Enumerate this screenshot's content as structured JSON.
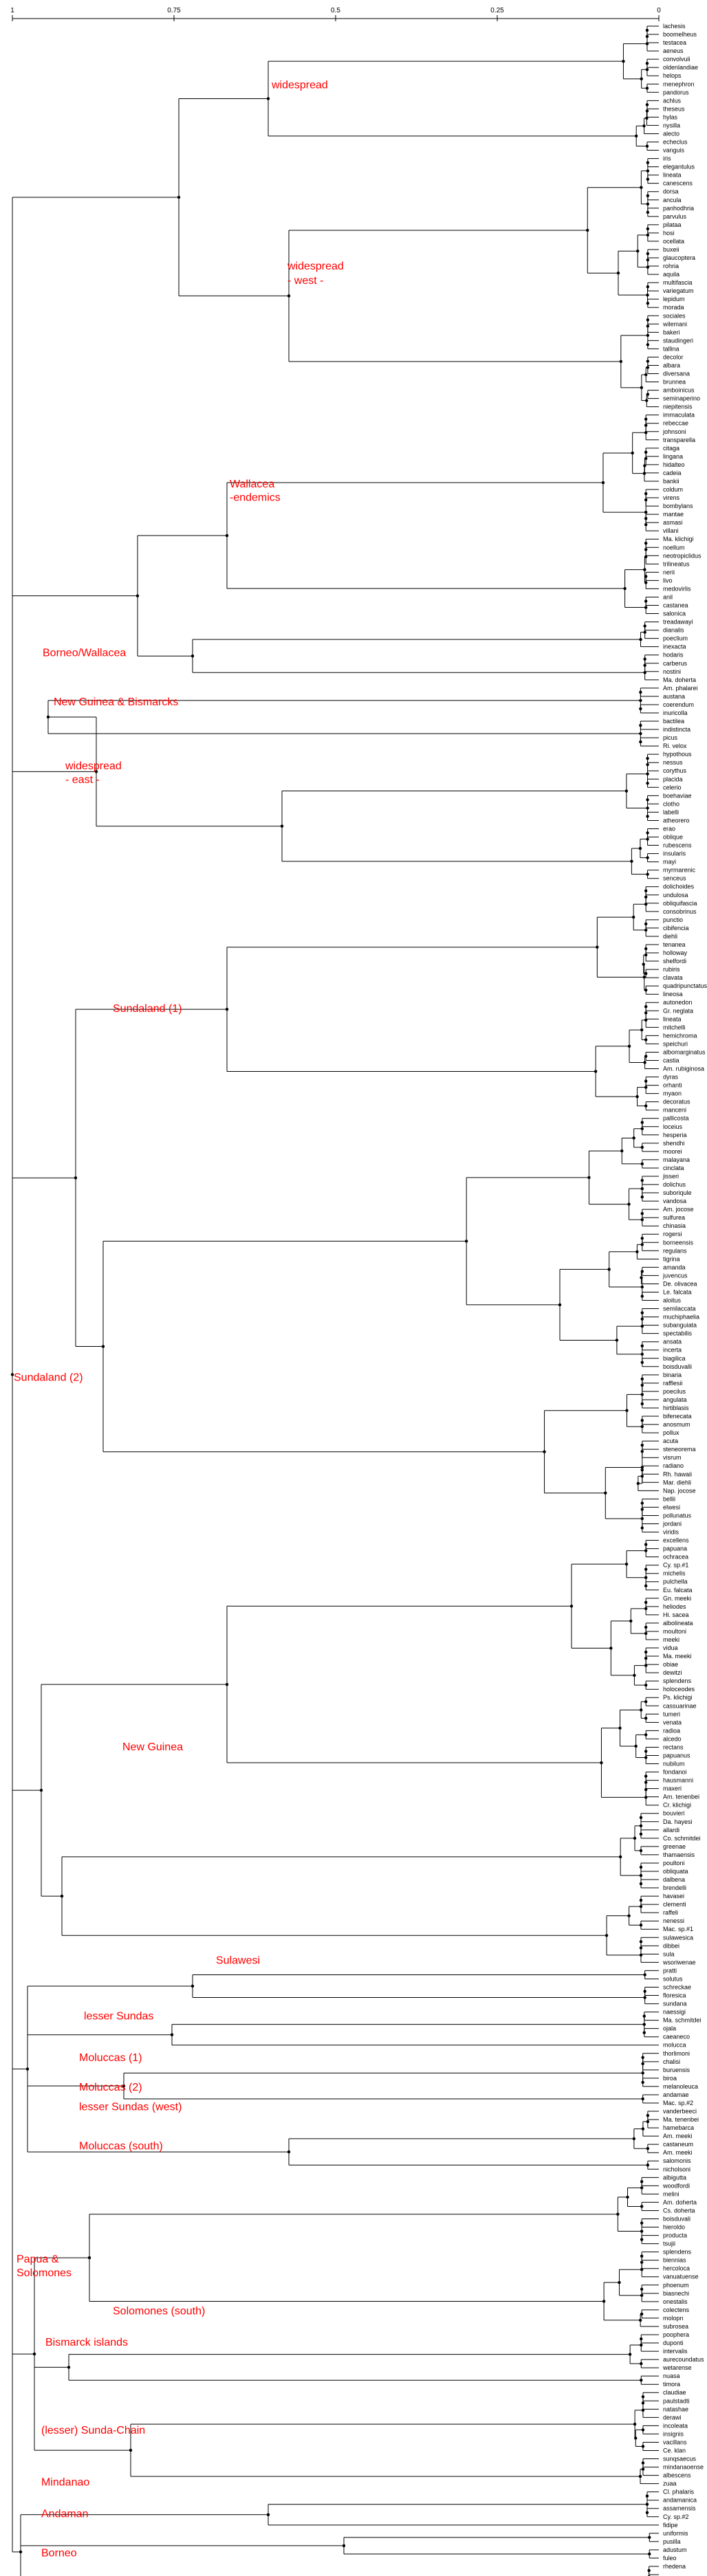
{
  "scale_labels": [
    "1",
    "0.75",
    "0.5",
    "0.25",
    "0"
  ],
  "leaves": [
    "lachesis",
    "boomelheus",
    "testacea",
    "aeneus",
    "convolvuli",
    "oldenlandiae",
    "helops",
    "menephron",
    "pandorus",
    "achlus",
    "theseus",
    "hylas",
    "nysilla",
    "alecto",
    "echeclus",
    "vanguis",
    "iris",
    "elegantulus",
    "lineata",
    "canescens",
    "dorsa",
    "ancula",
    "panhodhria",
    "parvulus",
    "pilataa",
    "hosi",
    "ocellata",
    "buxeii",
    "glaucoptera",
    "rohria",
    "aquila",
    "multifascia",
    "variegatum",
    "lepidum",
    "morada",
    "sociales",
    "wilemani",
    "bakeri",
    "staudingeri",
    "tallina",
    "decolor",
    "albara",
    "diversana",
    "brunnea",
    "amboinicus",
    "seminaperino",
    "niepitensis",
    "immaculata",
    "rebeccae",
    "johnsoni",
    "transparella",
    "citaga",
    "lingana",
    "hidalteo",
    "cadeia",
    "bankii",
    "coldum",
    "virens",
    "bombylans",
    "mantae",
    "asmasi",
    "villani",
    "Ma. klichigi",
    "noellum",
    "neotropiclidus",
    "trilineatus",
    "nerii",
    "livo",
    "medovirlis",
    "anil",
    "castanea",
    "salonica",
    "treadawayi",
    "dianalis",
    "poeclium",
    "inexacta",
    "hodaris",
    "carberus",
    "nostini",
    "Ma. doherta",
    "Am. phalarei",
    "austana",
    "coerendum",
    "inuricolla",
    "bactilea",
    "indistincta",
    "picus",
    "Ri. velox",
    "hypothous",
    "nessus",
    "corythus",
    "placida",
    "celerio",
    "boehaviae",
    "clotho",
    "labelli",
    "atheorero",
    "erao",
    "oblique",
    "rubescens",
    "insularis",
    "mayi",
    "myrmarenic",
    "senceus",
    "dolichoides",
    "undulosa",
    "obliquifascia",
    "consobrinus",
    "punctio",
    "cibifencia",
    "diehli",
    "tenanea",
    "holloway",
    "shelfordi",
    "rubiris",
    "clavata",
    "quadripunctatus",
    "lineosa",
    "autonedon",
    "Gr. neglata",
    "lineata",
    "mitchelli",
    "hemichroma",
    "speichuri",
    "albomarginatus",
    "castia",
    "Am. rubiginosa",
    "dyras",
    "orhanti",
    "myaon",
    "decoratus",
    "manceni",
    "pallicosta",
    "loceius",
    "hesperia",
    "shendhi",
    "moorei",
    "malayana",
    "cinclata",
    "jisseri",
    "dolichus",
    "suboriqule",
    "vandosa",
    "Am. jocose",
    "sulfurea",
    "chinasia",
    "rogersi",
    "borneensis",
    "regulans",
    "tigrina",
    "amanda",
    "juvencus",
    "De. olivacea",
    "Le. falcata",
    "aloitus",
    "semilaccata",
    "muchiphaelia",
    "subanguiata",
    "spectabilis",
    "ansata",
    "incerta",
    "biagilica",
    "boisduvalli",
    "binaria",
    "rafflesii",
    "poecilus",
    "angulata",
    "hirtiblasis",
    "bifenecata",
    "anosmum",
    "pollux",
    "acuta",
    "steneorema",
    "visrum",
    "radiano",
    "Rh. hawaii",
    "Mar. diehli",
    "Nap. jocose",
    "bellii",
    "elwesi",
    "pollunatus",
    "jordani",
    "viridis",
    "excellens",
    "papuana",
    "ochracea",
    "Cy. sp.#1",
    "michelis",
    "pulchella",
    "Eu. falcata",
    "Gn. meeki",
    "heliodes",
    "Hi. sacea",
    "albolineata",
    "moultoni",
    "meeki",
    "vidua",
    "Ma. meeki",
    "obiae",
    "dewitzi",
    "splendens",
    "holoceodes",
    "Ps. klichigi",
    "cassuarinae",
    "tumeri",
    "venata",
    "radioa",
    "alcedo",
    "rectans",
    "papuanus",
    "nubilum",
    "fondanoi",
    "hausmanni",
    "maxeri",
    "Am. tenenbei",
    "Cr. klichigi",
    "bouvieri",
    "Da. hayesi",
    "allardi",
    "Co. schmitdei",
    "greenae",
    "thamaensis",
    "poultoni",
    "obliquata",
    "dalbena",
    "brendelli",
    "havasei",
    "clementi",
    "raffeli",
    "nenessi",
    "Mac. sp.#1",
    "sulawesica",
    "dibbei",
    "sula",
    "wsoriwenae",
    "pratti",
    "solutus",
    "schreckae",
    "floresica",
    "sundana",
    "naessigi",
    "Ma. schmitdei",
    "ojala",
    "caeaneco",
    "molucca",
    "thorlimoni",
    "chalisi",
    "buruensis",
    "biroa",
    "melanoleuca",
    "andamae",
    "Mac. sp.#2",
    "vanderbeeci",
    "Ma. tenenbei",
    "hamebarca",
    "Am. meeki",
    "castaneum",
    "Am. meeki",
    "salomonis",
    "nicholsoni",
    "albigutta",
    "woodfordi",
    "melini",
    "Am. doherta",
    "Cs. doherta",
    "boisduvali",
    "hieroldo",
    "producta",
    "tsujii",
    "splendens",
    "biennias",
    "hercoloca",
    "vanuatuense",
    "phoenum",
    "biasnechi",
    "onestalis",
    "colectens",
    "molopn",
    "subrosea",
    "poophera",
    "duponti",
    "intervalis",
    "aurecoundatus",
    "wetarense",
    "nuasa",
    "timora",
    "claudiae",
    "paulstadti",
    "natashae",
    "derawi",
    "incoleata",
    "insignis",
    "vacillans",
    "Ce. klan",
    "sunqsaecus",
    "mindanaoense",
    "albescens",
    "zuaa",
    "Cl. phalaris",
    "andamanica",
    "assamensis",
    "Cy. sp.#2",
    "fidipe",
    "uniformis",
    "pusilla",
    "adustum",
    "fuleo",
    "rhedena"
  ],
  "clade_labels": [
    {
      "name": "widespread"
    },
    {
      "name": "widespread"
    },
    {
      "name": "- west -"
    },
    {
      "name": "Wallacea"
    },
    {
      "name": "-endemics"
    },
    {
      "name": "Borneo/Wallacea"
    },
    {
      "name": "New Guinea & Bismarcks"
    },
    {
      "name": "widespread"
    },
    {
      "name": "- east -"
    },
    {
      "name": "Sundaland (1)"
    },
    {
      "name": "Sundaland (2)"
    },
    {
      "name": "New Guinea"
    },
    {
      "name": "Sulawesi"
    },
    {
      "name": "lesser Sundas"
    },
    {
      "name": "Moluccas (1)"
    },
    {
      "name": "Moluccas (2)"
    },
    {
      "name": "lesser Sundas (west)"
    },
    {
      "name": "Moluccas (south)"
    },
    {
      "name": "Papua &"
    },
    {
      "name": "Solomones"
    },
    {
      "name": "Solomones (south)"
    },
    {
      "name": "Bismarck islands"
    },
    {
      "name": "(lesser) Sunda-Chain"
    },
    {
      "name": "Mindanao"
    },
    {
      "name": "Andaman"
    },
    {
      "name": "Borneo"
    }
  ]
}
